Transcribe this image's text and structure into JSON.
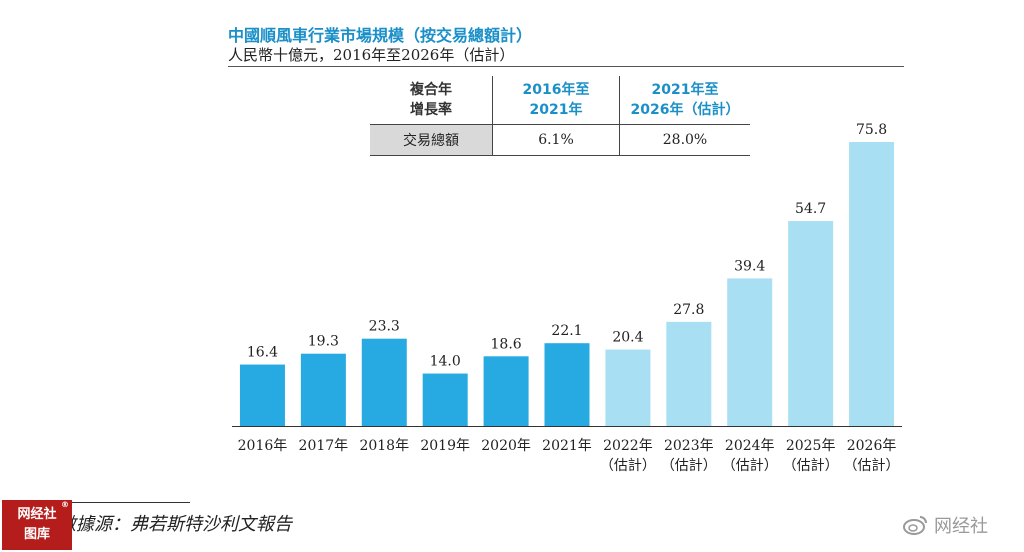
{
  "title": "中國順風車行業市場規模（按交易總額計）",
  "subtitle": "人民幣十億元，2016年至2026年（估計）",
  "cagr_table": {
    "corner_line1": "複合年",
    "corner_line2": "增長率",
    "col1_line1": "2016年至",
    "col1_line2": "2021年",
    "col2_line1": "2021年至",
    "col2_line2": "2026年（估計）",
    "row_label": "交易總額",
    "col1_value": "6.1%",
    "col2_value": "28.0%"
  },
  "chart_data": {
    "type": "bar",
    "title": "中國順風車行業市場規模（按交易總額計）",
    "subtitle": "人民幣十億元，2016年至2026年（估計）",
    "categories": [
      "2016年",
      "2017年",
      "2018年",
      "2019年",
      "2020年",
      "2021年",
      "2022年",
      "2023年",
      "2024年",
      "2025年",
      "2026年"
    ],
    "category_sublabels": [
      "",
      "",
      "",
      "",
      "",
      "",
      "（估計）",
      "（估計）",
      "（估計）",
      "（估計）",
      "（估計）"
    ],
    "values": [
      16.4,
      19.3,
      23.3,
      14.0,
      18.6,
      22.1,
      20.4,
      27.8,
      39.4,
      54.7,
      75.8
    ],
    "value_labels": [
      "16.4",
      "19.3",
      "23.3",
      "14.0",
      "18.6",
      "22.1",
      "20.4",
      "27.8",
      "39.4",
      "54.7",
      "75.8"
    ],
    "ylim": [
      0,
      75.8
    ],
    "grid": false,
    "colors": {
      "actual": "#27a9e1",
      "estimate": "#a8dff3"
    },
    "estimate_from_index": 6
  },
  "source": "數據源：弗若斯特沙利文報告",
  "stamp": {
    "line1": "网经社",
    "line2": "图库",
    "mark": "®"
  },
  "watermark": {
    "text": "网经社",
    "icon": "weibo-icon"
  }
}
